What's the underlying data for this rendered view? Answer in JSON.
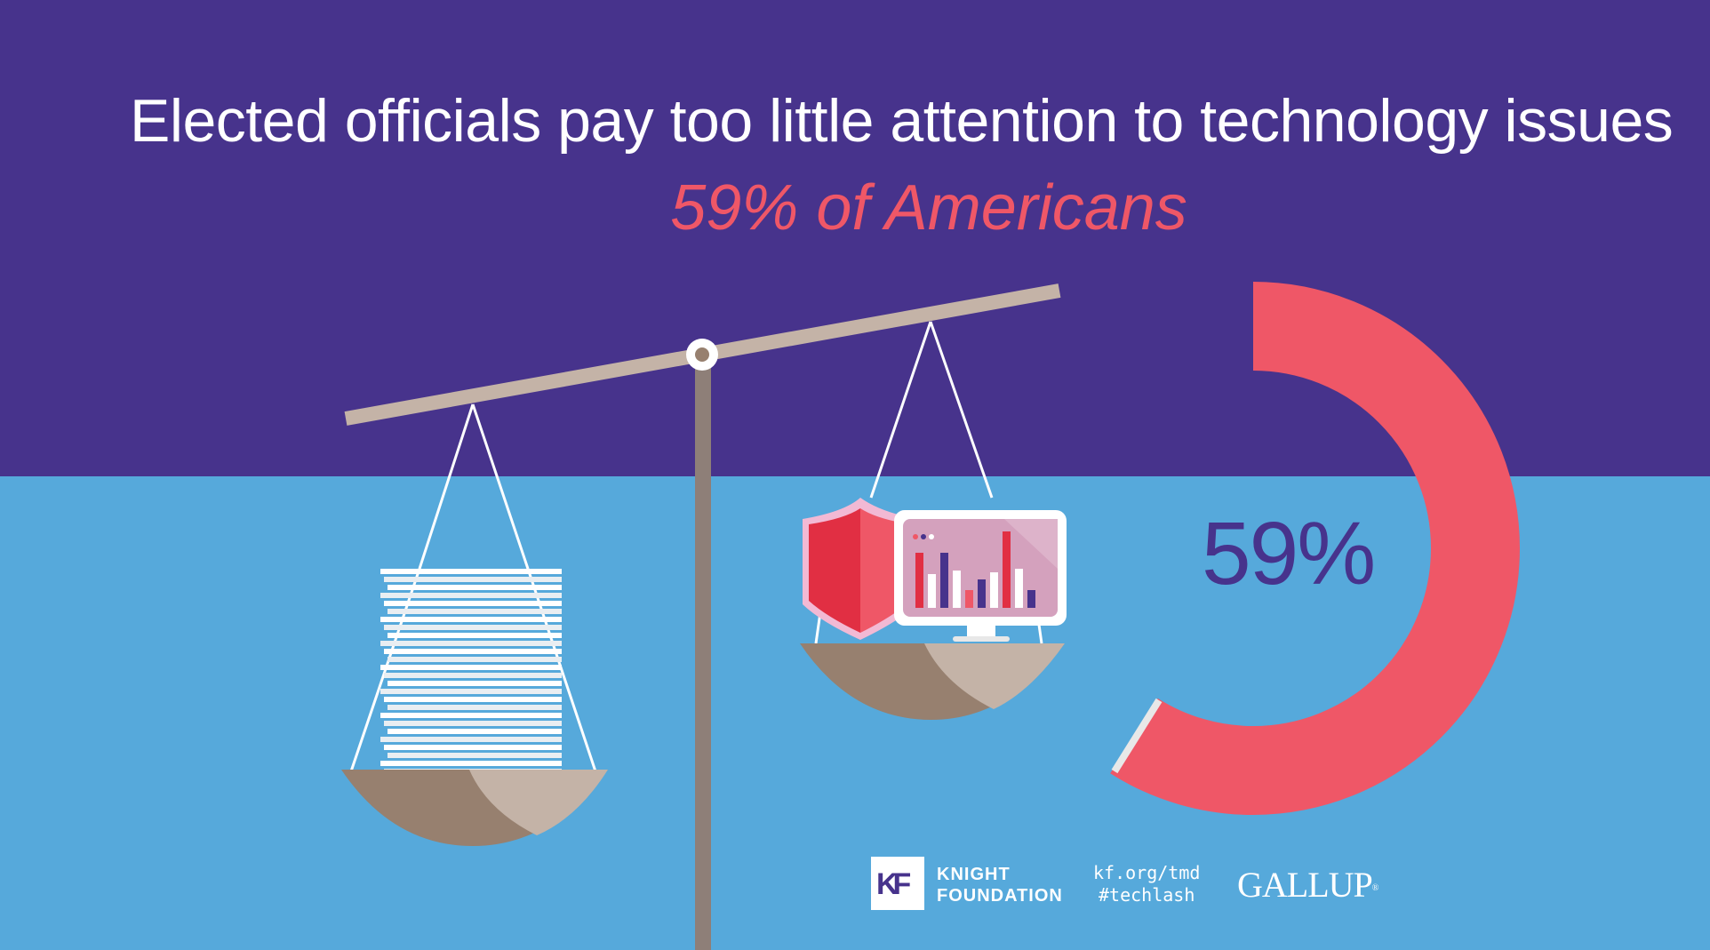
{
  "headline": "Elected officials pay too little attention to technology issues",
  "subheadline": "59% of Americans",
  "stat": {
    "percent_label": "59%",
    "value": 59,
    "ring_color": "#ef5767"
  },
  "colors": {
    "background_top": "#47338c",
    "background_bottom": "#56a9db",
    "accent": "#ef5767",
    "text": "#ffffff"
  },
  "illustration": {
    "left_pan": "paper-stack-icon",
    "right_pan": [
      "shield-icon",
      "monitor-chart-icon"
    ]
  },
  "footer": {
    "kf_logo": {
      "letters": "KF"
    },
    "kf_name_line1": "KNIGHT",
    "kf_name_line2": "FOUNDATION",
    "link": "kf.org/tmd",
    "hashtag": "#techlash",
    "partner": "GALLUP"
  }
}
